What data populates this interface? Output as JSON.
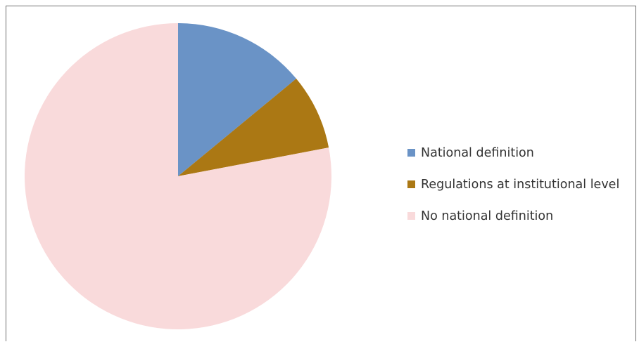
{
  "chart_data": {
    "type": "pie",
    "title": "",
    "slices": [
      {
        "label": "National definition",
        "value": 14,
        "color": "#6a93c6"
      },
      {
        "label": "Regulations at institutional level",
        "value": 8,
        "color": "#ab7814"
      },
      {
        "label": "No national definition",
        "value": 78,
        "color": "#f9dadb"
      }
    ],
    "start_angle_deg": 0,
    "direction": "clockwise",
    "legend": {
      "position": "right",
      "items": [
        {
          "label": "National definition",
          "color": "#6a93c6"
        },
        {
          "label": "Regulations at institutional level",
          "color": "#ab7814"
        },
        {
          "label": "No national definition",
          "color": "#f9dadb"
        }
      ]
    }
  }
}
